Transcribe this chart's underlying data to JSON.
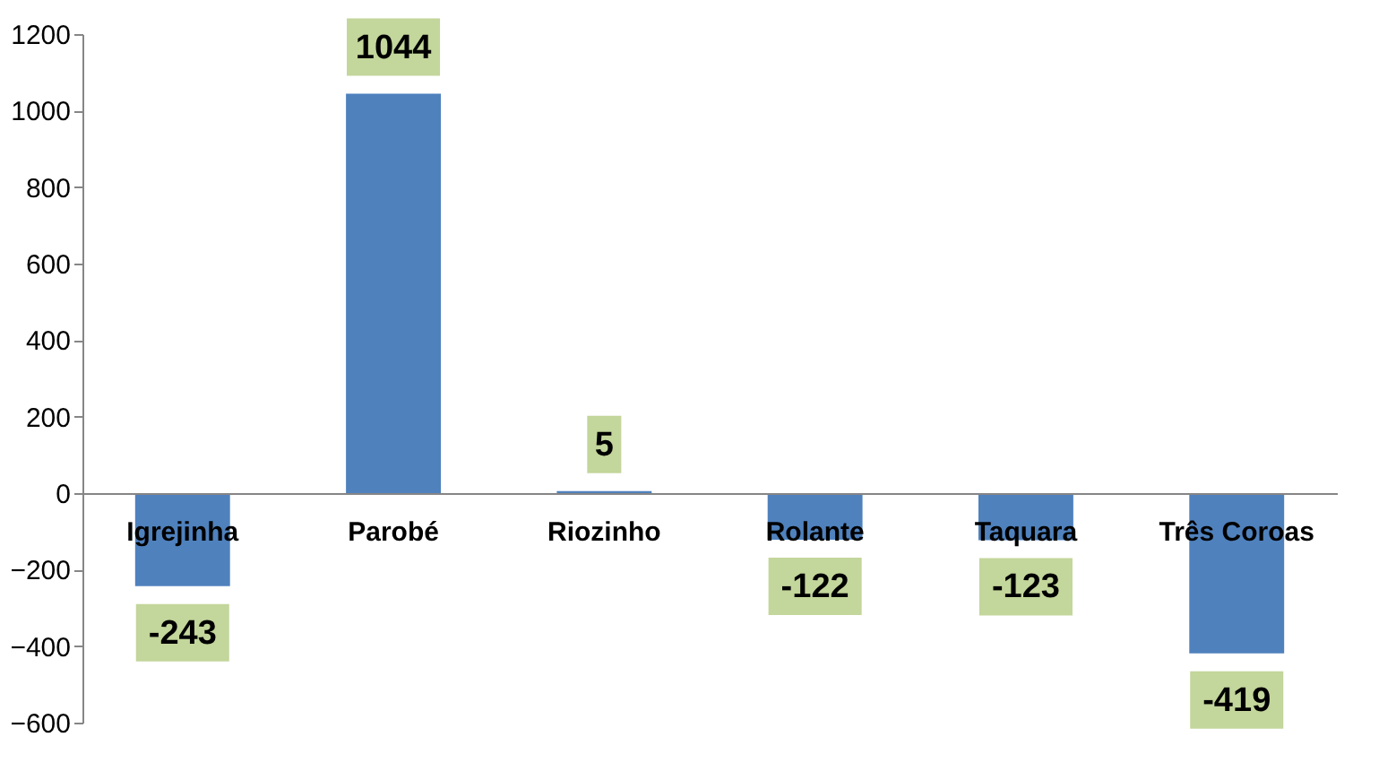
{
  "chart_data": {
    "type": "bar",
    "categories": [
      "Igrejinha",
      "Parobé",
      "Riozinho",
      "Rolante",
      "Taquara",
      "Três Coroas"
    ],
    "values": [
      -243,
      1044,
      5,
      -122,
      -123,
      -419
    ],
    "color": "#4f81bd",
    "ylim": [
      -600,
      1200
    ],
    "yticks": [
      -600,
      -400,
      -200,
      0,
      200,
      400,
      600,
      800,
      1000,
      1200
    ],
    "data_labels": true
  }
}
